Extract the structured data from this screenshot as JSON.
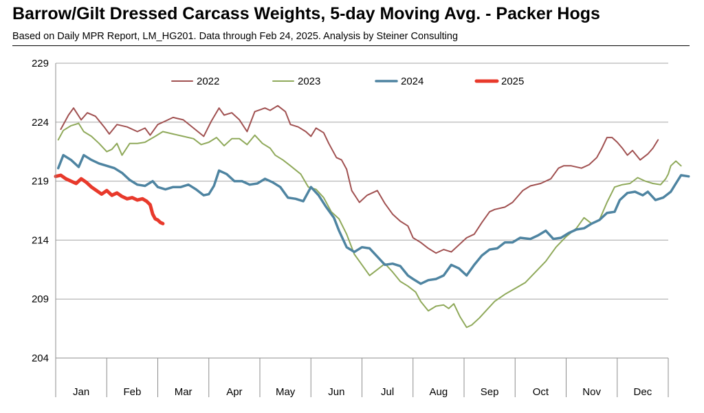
{
  "title": "Barrow/Gilt Dressed Carcass Weights, 5-day Moving Avg. - Packer Hogs",
  "subtitle": "Based on Daily MPR Report, LM_HG201.  Data through Feb 24, 2025.  Analysis by Steiner Consulting",
  "chart_data": {
    "type": "line",
    "title": "Barrow/Gilt Dressed Carcass Weights, 5-day Moving Avg. - Packer Hogs",
    "xlabel": "",
    "ylabel": "",
    "categories": [
      "Jan",
      "Feb",
      "Mar",
      "Apr",
      "May",
      "Jun",
      "Jul",
      "Aug",
      "Sep",
      "Oct",
      "Nov",
      "Dec"
    ],
    "ylim": [
      204,
      229
    ],
    "yticks": [
      "204",
      "209",
      "214",
      "219",
      "224",
      "229"
    ],
    "grid": "horizontal",
    "legend_position": "top",
    "x_unit": "month index (1 = Jan 1, 13 = Dec 31)",
    "series": [
      {
        "name": "2022",
        "color": "#A05050",
        "width": 2,
        "points": [
          [
            1.1,
            223.4
          ],
          [
            1.25,
            224.6
          ],
          [
            1.35,
            225.2
          ],
          [
            1.5,
            224.2
          ],
          [
            1.62,
            224.8
          ],
          [
            1.78,
            224.5
          ],
          [
            1.95,
            223.6
          ],
          [
            2.05,
            223.0
          ],
          [
            2.2,
            223.8
          ],
          [
            2.4,
            223.6
          ],
          [
            2.6,
            223.2
          ],
          [
            2.75,
            223.5
          ],
          [
            2.85,
            222.9
          ],
          [
            3.0,
            223.8
          ],
          [
            3.15,
            224.1
          ],
          [
            3.3,
            224.4
          ],
          [
            3.5,
            224.2
          ],
          [
            3.7,
            223.5
          ],
          [
            3.9,
            222.8
          ],
          [
            4.05,
            224.1
          ],
          [
            4.2,
            225.2
          ],
          [
            4.3,
            224.6
          ],
          [
            4.45,
            224.8
          ],
          [
            4.6,
            224.2
          ],
          [
            4.75,
            223.2
          ],
          [
            4.9,
            224.9
          ],
          [
            5.1,
            225.2
          ],
          [
            5.2,
            225.0
          ],
          [
            5.35,
            225.4
          ],
          [
            5.5,
            224.9
          ],
          [
            5.6,
            223.8
          ],
          [
            5.75,
            223.6
          ],
          [
            5.9,
            223.2
          ],
          [
            6.0,
            222.8
          ],
          [
            6.1,
            223.5
          ],
          [
            6.25,
            223.1
          ],
          [
            6.35,
            222.2
          ],
          [
            6.5,
            221.0
          ],
          [
            6.6,
            220.8
          ],
          [
            6.7,
            220.0
          ],
          [
            6.8,
            218.2
          ],
          [
            6.95,
            217.2
          ],
          [
            7.1,
            217.8
          ],
          [
            7.3,
            218.2
          ],
          [
            7.45,
            217.1
          ],
          [
            7.6,
            216.2
          ],
          [
            7.75,
            215.6
          ],
          [
            7.9,
            215.2
          ],
          [
            8.0,
            214.2
          ],
          [
            8.15,
            213.8
          ],
          [
            8.3,
            213.3
          ],
          [
            8.45,
            212.9
          ],
          [
            8.6,
            213.2
          ],
          [
            8.75,
            213.0
          ],
          [
            8.9,
            213.6
          ],
          [
            9.05,
            214.2
          ],
          [
            9.2,
            214.5
          ],
          [
            9.35,
            215.5
          ],
          [
            9.5,
            216.4
          ],
          [
            9.6,
            216.6
          ],
          [
            9.8,
            216.8
          ],
          [
            9.95,
            217.2
          ],
          [
            10.05,
            217.7
          ],
          [
            10.15,
            218.2
          ],
          [
            10.3,
            218.6
          ],
          [
            10.5,
            218.8
          ],
          [
            10.7,
            219.2
          ],
          [
            10.85,
            220.1
          ],
          [
            10.95,
            220.3
          ],
          [
            11.1,
            220.3
          ],
          [
            11.3,
            220.1
          ],
          [
            11.45,
            220.4
          ],
          [
            11.6,
            221.0
          ],
          [
            11.7,
            221.8
          ],
          [
            11.8,
            222.7
          ],
          [
            11.9,
            222.7
          ],
          [
            12.0,
            222.3
          ],
          [
            12.1,
            221.8
          ],
          [
            12.2,
            221.2
          ],
          [
            12.3,
            221.6
          ],
          [
            12.45,
            220.8
          ],
          [
            12.6,
            221.3
          ],
          [
            12.7,
            221.8
          ],
          [
            12.8,
            222.5
          ]
        ]
      },
      {
        "name": "2023",
        "color": "#8FA95A",
        "width": 2,
        "points": [
          [
            1.05,
            222.5
          ],
          [
            1.15,
            223.3
          ],
          [
            1.3,
            223.7
          ],
          [
            1.45,
            223.9
          ],
          [
            1.55,
            223.2
          ],
          [
            1.7,
            222.8
          ],
          [
            1.85,
            222.2
          ],
          [
            2.0,
            221.5
          ],
          [
            2.1,
            221.7
          ],
          [
            2.2,
            222.2
          ],
          [
            2.3,
            221.2
          ],
          [
            2.45,
            222.2
          ],
          [
            2.6,
            222.2
          ],
          [
            2.75,
            222.3
          ],
          [
            2.95,
            222.8
          ],
          [
            3.1,
            223.2
          ],
          [
            3.3,
            223.0
          ],
          [
            3.5,
            222.8
          ],
          [
            3.7,
            222.6
          ],
          [
            3.85,
            222.1
          ],
          [
            4.0,
            222.3
          ],
          [
            4.15,
            222.7
          ],
          [
            4.3,
            222.0
          ],
          [
            4.45,
            222.6
          ],
          [
            4.6,
            222.6
          ],
          [
            4.75,
            222.1
          ],
          [
            4.9,
            222.9
          ],
          [
            5.05,
            222.2
          ],
          [
            5.2,
            221.8
          ],
          [
            5.3,
            221.2
          ],
          [
            5.45,
            220.8
          ],
          [
            5.6,
            220.3
          ],
          [
            5.8,
            219.6
          ],
          [
            5.95,
            218.5
          ],
          [
            6.1,
            218.3
          ],
          [
            6.25,
            217.6
          ],
          [
            6.4,
            216.4
          ],
          [
            6.55,
            215.8
          ],
          [
            6.7,
            214.5
          ],
          [
            6.85,
            212.8
          ],
          [
            7.0,
            211.9
          ],
          [
            7.15,
            211.0
          ],
          [
            7.3,
            211.5
          ],
          [
            7.45,
            212.0
          ],
          [
            7.6,
            211.3
          ],
          [
            7.75,
            210.5
          ],
          [
            7.9,
            210.1
          ],
          [
            8.05,
            209.6
          ],
          [
            8.15,
            208.8
          ],
          [
            8.3,
            208.0
          ],
          [
            8.45,
            208.4
          ],
          [
            8.6,
            208.5
          ],
          [
            8.7,
            208.2
          ],
          [
            8.8,
            208.6
          ],
          [
            8.92,
            207.5
          ],
          [
            9.05,
            206.6
          ],
          [
            9.15,
            206.8
          ],
          [
            9.3,
            207.4
          ],
          [
            9.45,
            208.1
          ],
          [
            9.6,
            208.8
          ],
          [
            9.8,
            209.4
          ],
          [
            10.0,
            209.9
          ],
          [
            10.2,
            210.4
          ],
          [
            10.4,
            211.3
          ],
          [
            10.6,
            212.2
          ],
          [
            10.8,
            213.4
          ],
          [
            11.0,
            214.3
          ],
          [
            11.2,
            215.0
          ],
          [
            11.35,
            215.9
          ],
          [
            11.5,
            215.4
          ],
          [
            11.65,
            215.7
          ],
          [
            11.8,
            217.2
          ],
          [
            11.95,
            218.5
          ],
          [
            12.1,
            218.7
          ],
          [
            12.25,
            218.8
          ],
          [
            12.4,
            219.3
          ],
          [
            12.55,
            219.0
          ],
          [
            12.7,
            218.8
          ],
          [
            12.85,
            218.7
          ],
          [
            12.95,
            219.2
          ],
          [
            13.0,
            219.6
          ],
          [
            13.05,
            220.3
          ],
          [
            13.15,
            220.7
          ],
          [
            13.25,
            220.3
          ]
        ]
      },
      {
        "name": "2024",
        "color": "#4E84A1",
        "width": 3.5,
        "points": [
          [
            1.05,
            220.1
          ],
          [
            1.15,
            221.2
          ],
          [
            1.3,
            220.8
          ],
          [
            1.45,
            220.2
          ],
          [
            1.55,
            221.2
          ],
          [
            1.7,
            220.8
          ],
          [
            1.85,
            220.5
          ],
          [
            2.0,
            220.3
          ],
          [
            2.15,
            220.1
          ],
          [
            2.3,
            219.7
          ],
          [
            2.45,
            219.1
          ],
          [
            2.6,
            218.7
          ],
          [
            2.75,
            218.6
          ],
          [
            2.9,
            219.0
          ],
          [
            3.0,
            218.5
          ],
          [
            3.15,
            218.3
          ],
          [
            3.3,
            218.5
          ],
          [
            3.45,
            218.5
          ],
          [
            3.6,
            218.7
          ],
          [
            3.75,
            218.3
          ],
          [
            3.9,
            217.8
          ],
          [
            4.0,
            217.9
          ],
          [
            4.1,
            218.6
          ],
          [
            4.2,
            219.9
          ],
          [
            4.35,
            219.6
          ],
          [
            4.5,
            219.0
          ],
          [
            4.65,
            219.0
          ],
          [
            4.8,
            218.7
          ],
          [
            4.95,
            218.8
          ],
          [
            5.1,
            219.2
          ],
          [
            5.25,
            218.9
          ],
          [
            5.4,
            218.5
          ],
          [
            5.55,
            217.6
          ],
          [
            5.7,
            217.5
          ],
          [
            5.85,
            217.3
          ],
          [
            6.0,
            218.5
          ],
          [
            6.15,
            217.8
          ],
          [
            6.3,
            216.8
          ],
          [
            6.45,
            215.9
          ],
          [
            6.55,
            214.8
          ],
          [
            6.7,
            213.4
          ],
          [
            6.85,
            213.0
          ],
          [
            7.0,
            213.4
          ],
          [
            7.15,
            213.3
          ],
          [
            7.3,
            212.6
          ],
          [
            7.45,
            211.9
          ],
          [
            7.6,
            212.0
          ],
          [
            7.75,
            211.8
          ],
          [
            7.9,
            211.0
          ],
          [
            8.0,
            210.7
          ],
          [
            8.15,
            210.3
          ],
          [
            8.3,
            210.6
          ],
          [
            8.45,
            210.7
          ],
          [
            8.6,
            211.0
          ],
          [
            8.75,
            211.9
          ],
          [
            8.9,
            211.6
          ],
          [
            9.05,
            211.0
          ],
          [
            9.2,
            211.9
          ],
          [
            9.35,
            212.7
          ],
          [
            9.5,
            213.2
          ],
          [
            9.65,
            213.3
          ],
          [
            9.8,
            213.8
          ],
          [
            9.95,
            213.8
          ],
          [
            10.1,
            214.2
          ],
          [
            10.3,
            214.1
          ],
          [
            10.45,
            214.4
          ],
          [
            10.6,
            214.8
          ],
          [
            10.75,
            214.1
          ],
          [
            10.9,
            214.2
          ],
          [
            11.05,
            214.6
          ],
          [
            11.2,
            214.9
          ],
          [
            11.35,
            215.0
          ],
          [
            11.5,
            215.4
          ],
          [
            11.65,
            215.7
          ],
          [
            11.8,
            216.3
          ],
          [
            11.95,
            216.4
          ],
          [
            12.05,
            217.4
          ],
          [
            12.2,
            218.0
          ],
          [
            12.35,
            218.1
          ],
          [
            12.5,
            217.8
          ],
          [
            12.6,
            218.1
          ],
          [
            12.75,
            217.4
          ],
          [
            12.9,
            217.6
          ],
          [
            13.05,
            218.1
          ],
          [
            13.15,
            218.8
          ],
          [
            13.25,
            219.5
          ],
          [
            13.4,
            219.4
          ]
        ]
      },
      {
        "name": "2025",
        "color": "#E8392B",
        "width": 5,
        "points": [
          [
            1.0,
            219.4
          ],
          [
            1.1,
            219.5
          ],
          [
            1.2,
            219.2
          ],
          [
            1.3,
            219.0
          ],
          [
            1.4,
            218.8
          ],
          [
            1.5,
            219.2
          ],
          [
            1.6,
            218.9
          ],
          [
            1.7,
            218.5
          ],
          [
            1.8,
            218.2
          ],
          [
            1.9,
            217.9
          ],
          [
            2.0,
            218.2
          ],
          [
            2.1,
            217.8
          ],
          [
            2.2,
            218.0
          ],
          [
            2.3,
            217.7
          ],
          [
            2.4,
            217.5
          ],
          [
            2.5,
            217.6
          ],
          [
            2.6,
            217.4
          ],
          [
            2.7,
            217.5
          ],
          [
            2.78,
            217.3
          ],
          [
            2.85,
            217.0
          ],
          [
            2.9,
            216.2
          ],
          [
            2.95,
            215.8
          ],
          [
            3.0,
            215.7
          ],
          [
            3.05,
            215.5
          ],
          [
            3.1,
            215.4
          ]
        ]
      }
    ]
  }
}
